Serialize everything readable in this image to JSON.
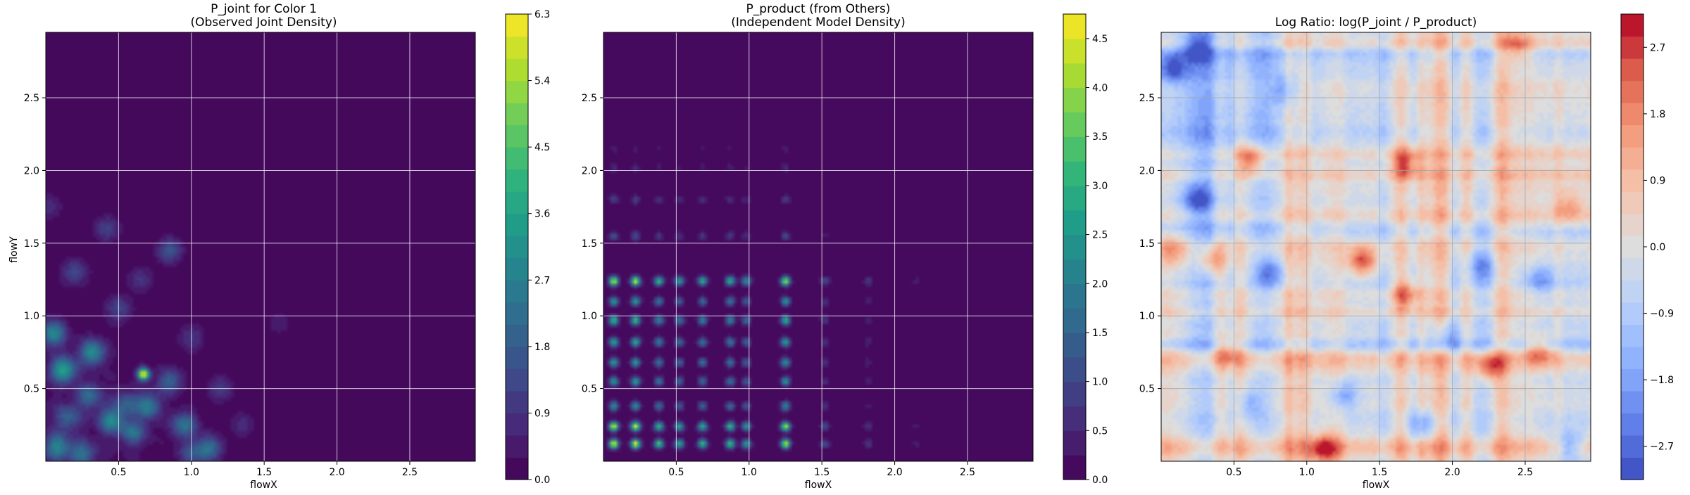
{
  "figure": {
    "panels": [
      {
        "title_line1": "P_joint for Color 1",
        "title_line2": "(Observed Joint Density)"
      },
      {
        "title_line1": "P_product (from Others)",
        "title_line2": "(Independent Model Density)"
      },
      {
        "title_line1": "Log Ratio: log(P_joint / P_product)",
        "title_line2": ""
      }
    ]
  },
  "chart_data": [
    {
      "type": "heatmap",
      "title": "P_joint for Color 1\n(Observed Joint Density)",
      "xlabel": "flowX",
      "ylabel": "flowY",
      "xlim": [
        0.0,
        2.95
      ],
      "ylim": [
        0.0,
        2.95
      ],
      "xticks": [
        "0.5",
        "1.0",
        "1.5",
        "2.0",
        "2.5"
      ],
      "yticks": [
        "0.5",
        "1.0",
        "1.5",
        "2.0",
        "2.5"
      ],
      "grid": true,
      "colormap": "viridis",
      "colorbar": {
        "min": 0.0,
        "max": 6.3,
        "ticks": [
          "0.0",
          "0.9",
          "1.8",
          "2.7",
          "3.6",
          "4.5",
          "5.4",
          "6.3"
        ],
        "levels": 21
      },
      "hotspots": [
        {
          "x": 0.67,
          "y": 0.6,
          "value": 6.3
        },
        {
          "x": 0.12,
          "y": 0.63,
          "value": 3.4
        },
        {
          "x": 0.32,
          "y": 0.75,
          "value": 2.9
        },
        {
          "x": 0.05,
          "y": 0.88,
          "value": 2.8
        },
        {
          "x": 0.45,
          "y": 0.28,
          "value": 2.7
        },
        {
          "x": 0.7,
          "y": 0.38,
          "value": 2.5
        },
        {
          "x": 0.08,
          "y": 0.1,
          "value": 2.6
        },
        {
          "x": 0.95,
          "y": 0.25,
          "value": 2.3
        },
        {
          "x": 1.12,
          "y": 0.09,
          "value": 2.2
        },
        {
          "x": 0.25,
          "y": 0.05,
          "value": 2.0
        },
        {
          "x": 0.6,
          "y": 0.2,
          "value": 2.1
        },
        {
          "x": 0.85,
          "y": 0.55,
          "value": 1.8
        },
        {
          "x": 0.85,
          "y": 1.45,
          "value": 1.6
        },
        {
          "x": 0.42,
          "y": 1.6,
          "value": 1.2
        },
        {
          "x": 0.2,
          "y": 1.3,
          "value": 1.3
        },
        {
          "x": 0.5,
          "y": 1.05,
          "value": 1.2
        },
        {
          "x": 1.2,
          "y": 0.5,
          "value": 1.0
        },
        {
          "x": 1.0,
          "y": 0.85,
          "value": 0.9
        },
        {
          "x": 0.3,
          "y": 0.45,
          "value": 1.9
        },
        {
          "x": 0.55,
          "y": 0.4,
          "value": 1.5
        },
        {
          "x": 1.0,
          "y": 0.05,
          "value": 1.4
        },
        {
          "x": 0.15,
          "y": 0.3,
          "value": 1.7
        },
        {
          "x": 1.35,
          "y": 0.25,
          "value": 0.7
        },
        {
          "x": 1.6,
          "y": 0.95,
          "value": 0.5
        },
        {
          "x": 0.65,
          "y": 1.25,
          "value": 0.9
        },
        {
          "x": 0.02,
          "y": 1.75,
          "value": 0.8
        }
      ]
    },
    {
      "type": "heatmap",
      "title": "P_product (from Others)\n(Independent Model Density)",
      "xlabel": "flowX",
      "ylabel": "",
      "xlim": [
        0.0,
        2.95
      ],
      "ylim": [
        0.0,
        2.95
      ],
      "xticks": [
        "0.5",
        "1.0",
        "1.5",
        "2.0",
        "2.5"
      ],
      "yticks": [
        "0.5",
        "1.0",
        "1.5",
        "2.0",
        "2.5"
      ],
      "grid": true,
      "colormap": "viridis",
      "colorbar": {
        "min": 0.0,
        "max": 4.75,
        "ticks": [
          "0.0",
          "0.5",
          "1.0",
          "1.5",
          "2.0",
          "2.5",
          "3.0",
          "3.5",
          "4.0",
          "4.5"
        ],
        "levels": 19
      },
      "marginal_peaks_x": [
        {
          "x": 0.07,
          "weight": 1.0
        },
        {
          "x": 0.22,
          "weight": 1.0
        },
        {
          "x": 0.38,
          "weight": 0.7
        },
        {
          "x": 0.52,
          "weight": 0.6
        },
        {
          "x": 0.68,
          "weight": 0.65
        },
        {
          "x": 0.87,
          "weight": 0.7
        },
        {
          "x": 0.98,
          "weight": 0.55
        },
        {
          "x": 1.25,
          "weight": 0.95
        },
        {
          "x": 1.52,
          "weight": 0.25
        },
        {
          "x": 1.82,
          "weight": 0.18
        },
        {
          "x": 2.15,
          "weight": 0.08
        }
      ],
      "marginal_peaks_y": [
        {
          "y": 0.12,
          "weight": 1.0
        },
        {
          "y": 0.24,
          "weight": 0.95
        },
        {
          "y": 0.38,
          "weight": 0.5
        },
        {
          "y": 0.55,
          "weight": 0.55
        },
        {
          "y": 0.68,
          "weight": 0.55
        },
        {
          "y": 0.82,
          "weight": 0.6
        },
        {
          "y": 0.97,
          "weight": 0.7
        },
        {
          "y": 1.1,
          "weight": 0.55
        },
        {
          "y": 1.24,
          "weight": 0.95
        },
        {
          "y": 1.55,
          "weight": 0.25
        },
        {
          "y": 1.8,
          "weight": 0.2
        },
        {
          "y": 2.02,
          "weight": 0.12
        },
        {
          "y": 2.15,
          "weight": 0.08
        }
      ]
    },
    {
      "type": "heatmap",
      "title": "Log Ratio: log(P_joint / P_product)",
      "xlabel": "flowX",
      "ylabel": "",
      "xlim": [
        0.0,
        2.95
      ],
      "ylim": [
        0.0,
        2.95
      ],
      "xticks": [
        "0.5",
        "1.0",
        "1.5",
        "2.0",
        "2.5"
      ],
      "yticks": [
        "0.5",
        "1.0",
        "1.5",
        "2.0",
        "2.5"
      ],
      "grid": true,
      "colormap": "coolwarm",
      "colorbar": {
        "min": -3.15,
        "max": 3.15,
        "ticks": [
          "−2.7",
          "−1.8",
          "−0.9",
          "0.0",
          "0.9",
          "1.8",
          "2.7"
        ],
        "levels": 21
      },
      "hotspots": [
        {
          "x": 1.38,
          "y": 1.38,
          "value": 2.6
        },
        {
          "x": 0.62,
          "y": 2.08,
          "value": 2.4
        },
        {
          "x": 1.68,
          "y": 2.05,
          "value": 2.0
        },
        {
          "x": 2.25,
          "y": 0.65,
          "value": 2.3
        },
        {
          "x": 1.12,
          "y": 0.08,
          "value": 2.4
        },
        {
          "x": 0.35,
          "y": 1.38,
          "value": 1.7
        },
        {
          "x": 1.68,
          "y": 1.15,
          "value": 1.9
        },
        {
          "x": 2.6,
          "y": 0.75,
          "value": 1.8
        },
        {
          "x": 2.45,
          "y": 2.85,
          "value": 1.6
        },
        {
          "x": 0.08,
          "y": 1.45,
          "value": 1.4
        },
        {
          "x": 0.45,
          "y": 0.75,
          "value": 1.5
        },
        {
          "x": 2.8,
          "y": 1.75,
          "value": 1.4
        },
        {
          "x": 0.08,
          "y": 2.7,
          "value": -2.3
        },
        {
          "x": 0.25,
          "y": 2.85,
          "value": -2.0
        },
        {
          "x": 0.25,
          "y": 1.8,
          "value": -2.1
        },
        {
          "x": 0.75,
          "y": 1.3,
          "value": -1.7
        },
        {
          "x": 2.8,
          "y": 0.1,
          "value": -1.9
        },
        {
          "x": 1.8,
          "y": 0.25,
          "value": -1.6
        },
        {
          "x": 2.2,
          "y": 1.35,
          "value": -1.6
        },
        {
          "x": 1.25,
          "y": 0.45,
          "value": -1.8
        },
        {
          "x": 0.85,
          "y": 2.55,
          "value": -1.5
        },
        {
          "x": 1.95,
          "y": 0.85,
          "value": -1.5
        },
        {
          "x": 2.6,
          "y": 1.25,
          "value": -1.5
        },
        {
          "x": 0.6,
          "y": 0.4,
          "value": -1.3
        }
      ]
    }
  ]
}
